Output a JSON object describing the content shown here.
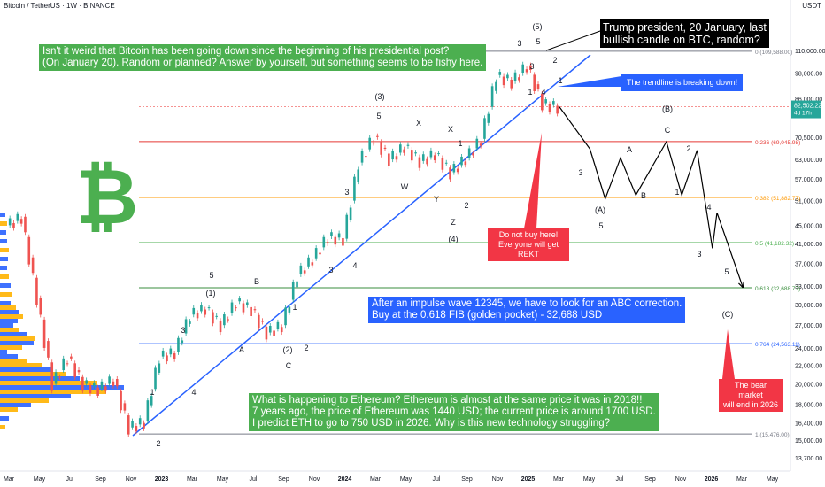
{
  "header": {
    "title": "Bitcoin / TetherUS · 1W · BINANCE",
    "currency": "USDT"
  },
  "colors": {
    "up": "#26a69a",
    "down": "#ef5350",
    "trend": "#2962ff",
    "fib0236": "#e53935",
    "fib0382": "#ff9800",
    "fib05": "#4caf50",
    "fib0618": "#388e3c",
    "fib0764": "#2962ff",
    "fibgray": "#787b86"
  },
  "notes": {
    "top_left": "Isn't it weird that Bitcoin has been going down since the beginning of his presidential post?\n(On January 20). Random or planned? Answer by yourself, but something seems to be fishy here.",
    "trump": "Trump president, 20 January, last\nbullish candle on BTC, random?",
    "trendline": "The trendline is breaking down!",
    "do_not_buy": "Do not buy here!\nEveryone will get REKT",
    "abc": "After an impulse wave 12345, we have to look for an ABC correction.\nBuy at the 0.618 FIB (golden pocket) - 32,688 USD",
    "ethereum": "What is happening to Ethereum? Ethereum is almost at the same price it was in 2018!!\n7 years ago, the price of Ethereum was 1440 USD; the current price is around 1700 USD.\nI predict ETH to go to 750 USD in 2026. Why is this new technology struggling?",
    "bear_market": "The bear market\nwill end in 2026"
  },
  "chart_data": {
    "type": "line",
    "title": "Bitcoin / TetherUS · 1W · BINANCE",
    "y_axis": {
      "scale": "log",
      "ticks": [
        110000,
        98000,
        86000,
        70500,
        63000,
        57000,
        51000,
        45000,
        41000,
        37000,
        33000,
        30000,
        27000,
        24000,
        22000,
        20000,
        18000,
        16400,
        15000,
        13700
      ],
      "tick_labels": [
        "110,000.00",
        "98,000.00",
        "86,000.00",
        "70,500.00",
        "63,000.00",
        "57,000.00",
        "51,000.00",
        "45,000.00",
        "41,000.00",
        "37,000.00",
        "33,000.00",
        "30,000.00",
        "27,000.00",
        "24,000.00",
        "22,000.00",
        "20,000.00",
        "18,000.00",
        "16,400.00",
        "15,000.00",
        "13,700.00"
      ]
    },
    "x_axis": {
      "tick_labels": [
        "Mar",
        "May",
        "Jul",
        "Sep",
        "Nov",
        "2023",
        "Mar",
        "May",
        "Jul",
        "Sep",
        "Nov",
        "2024",
        "Mar",
        "May",
        "Jul",
        "Sep",
        "Nov",
        "2025",
        "Mar",
        "May",
        "Jul",
        "Sep",
        "Nov",
        "2026",
        "Mar",
        "May"
      ]
    },
    "last_price": {
      "label": "82,502.22",
      "sublabel": "4d 17h",
      "value": 82502.22
    },
    "fib_levels": [
      {
        "ratio": "0",
        "value": 109588.0,
        "label": "0 (109,588.00)"
      },
      {
        "ratio": "0.236",
        "value": 69045.98,
        "label": "0.236 (69,045.98)"
      },
      {
        "ratio": "0.382",
        "value": 51882.77,
        "label": "0.382 (51,882.77)"
      },
      {
        "ratio": "0.5",
        "value": 41182.32,
        "label": "0.5 (41,182.32)"
      },
      {
        "ratio": "0.618",
        "value": 32688.77,
        "label": "0.618 (32,688.77)"
      },
      {
        "ratio": "0.764",
        "value": 24563.11,
        "label": "0.764 (24,563.11)"
      },
      {
        "ratio": "1",
        "value": 15476.0,
        "label": "1 (15,476.00)"
      }
    ],
    "price_path": [
      {
        "x": "2022-03",
        "y": 45000
      },
      {
        "x": "2022-04",
        "y": 47000
      },
      {
        "x": "2022-05",
        "y": 31000
      },
      {
        "x": "2022-06",
        "y": 20000
      },
      {
        "x": "2022-07",
        "y": 23000
      },
      {
        "x": "2022-08",
        "y": 20000
      },
      {
        "x": "2022-09",
        "y": 19500
      },
      {
        "x": "2022-10",
        "y": 20500
      },
      {
        "x": "2022-11",
        "y": 16000
      },
      {
        "x": "2022-12",
        "y": 16500
      },
      {
        "x": "2023-01",
        "y": 23000
      },
      {
        "x": "2023-02",
        "y": 23500
      },
      {
        "x": "2023-03",
        "y": 28500
      },
      {
        "x": "2023-04",
        "y": 29500
      },
      {
        "x": "2023-05",
        "y": 27000
      },
      {
        "x": "2023-06",
        "y": 30500
      },
      {
        "x": "2023-07",
        "y": 29300
      },
      {
        "x": "2023-08",
        "y": 26000
      },
      {
        "x": "2023-09",
        "y": 27000
      },
      {
        "x": "2023-10",
        "y": 35000
      },
      {
        "x": "2023-11",
        "y": 38000
      },
      {
        "x": "2023-12",
        "y": 42500
      },
      {
        "x": "2024-01",
        "y": 42000
      },
      {
        "x": "2024-02",
        "y": 62000
      },
      {
        "x": "2024-03",
        "y": 71000
      },
      {
        "x": "2024-04",
        "y": 63000
      },
      {
        "x": "2024-05",
        "y": 67500
      },
      {
        "x": "2024-06",
        "y": 62500
      },
      {
        "x": "2024-07",
        "y": 65000
      },
      {
        "x": "2024-08",
        "y": 59000
      },
      {
        "x": "2024-09",
        "y": 63500
      },
      {
        "x": "2024-10",
        "y": 70000
      },
      {
        "x": "2024-11",
        "y": 97000
      },
      {
        "x": "2024-12",
        "y": 94000
      },
      {
        "x": "2025-01",
        "y": 102000
      },
      {
        "x": "2025-02",
        "y": 84000
      },
      {
        "x": "2025-03",
        "y": 82500
      }
    ],
    "projection": [
      {
        "x": "2025-03",
        "y": 82500
      },
      {
        "x": "2025-05",
        "y": 66500
      },
      {
        "x": "2025-06",
        "y": 51500
      },
      {
        "x": "2025-07",
        "y": 63500
      },
      {
        "x": "2025-08",
        "y": 52500
      },
      {
        "x": "2025-10",
        "y": 69000
      },
      {
        "x": "2025-11",
        "y": 52500
      },
      {
        "x": "2025-12",
        "y": 66000
      },
      {
        "x": "2026-01",
        "y": 40000
      },
      {
        "x": "2026-01b",
        "y": 48000
      },
      {
        "x": "2026-03",
        "y": 32700
      }
    ],
    "wave_labels": [
      "1",
      "2",
      "3",
      "4",
      "5",
      "(1)",
      "A",
      "B",
      "C",
      "(2)",
      "1",
      "2",
      "3",
      "4",
      "5",
      "(3)",
      "W",
      "X",
      "Y",
      "X",
      "Z",
      "(4)",
      "1",
      "2",
      "3",
      "4",
      "5",
      "(5)",
      "1",
      "2",
      "3",
      "4",
      "5",
      "(A)",
      "A",
      "B",
      "C",
      "(B)",
      "1",
      "2",
      "3",
      "4",
      "5",
      "(C)"
    ]
  }
}
